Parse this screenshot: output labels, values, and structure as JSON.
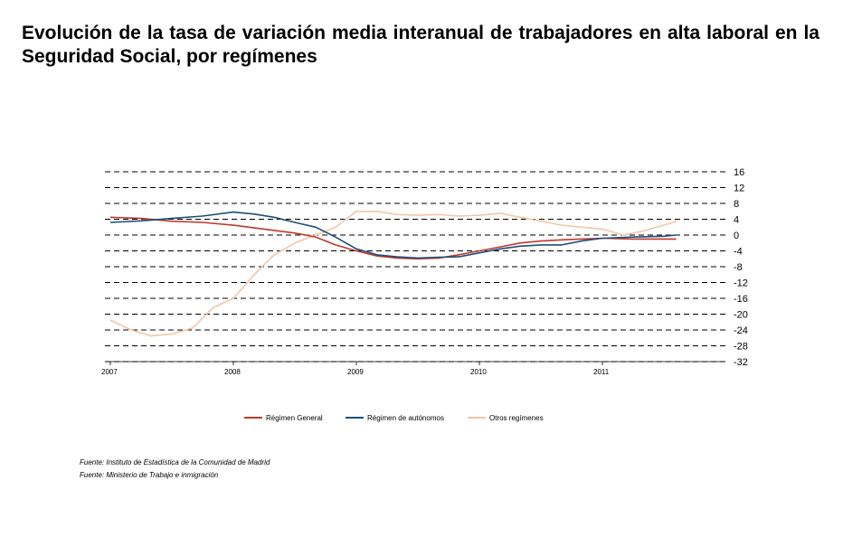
{
  "title": "Evolución de la tasa de variación media interanual de trabajadores en alta laboral en la Seguridad Social, por  regímenes",
  "sources": [
    "Fuente: Instituto de Estadística de la Comunidad de Madrid",
    "Fuente: Ministerio de Trabajo e inmigración"
  ],
  "chart_data": {
    "type": "line",
    "title": "Evolución de la tasa de variación media interanual de trabajadores en alta laboral en la Seguridad Social, por  regímenes",
    "xlabel": "",
    "ylabel": "",
    "xlim": [
      2007.0,
      2012.0
    ],
    "ylim": [
      -32,
      16
    ],
    "yticks": [
      16,
      12,
      8,
      4,
      0,
      -4,
      -8,
      -12,
      -16,
      -20,
      -24,
      -28,
      -32
    ],
    "xtick_labels": [
      "2007",
      "2008",
      "2009",
      "2010",
      "2011"
    ],
    "grid": "horizontal dashed",
    "legend_position": "bottom",
    "colors": {
      "Régimen General": "#c0392b",
      "Régimen de autónomos": "#1f4e79",
      "Otros regímenes": "#f2c6a8"
    },
    "series": [
      {
        "name": "Régimen General",
        "x": [
          2007.0,
          2007.25,
          2007.5,
          2007.75,
          2008.0,
          2008.25,
          2008.5,
          2008.67,
          2008.83,
          2009.0,
          2009.17,
          2009.33,
          2009.5,
          2009.67,
          2009.83,
          2010.0,
          2010.17,
          2010.33,
          2010.5,
          2010.67,
          2010.83,
          2011.0,
          2011.25,
          2011.5,
          2011.6
        ],
        "values": [
          4.5,
          4.2,
          3.5,
          3.2,
          2.5,
          1.5,
          0.5,
          -0.5,
          -2.5,
          -4.0,
          -5.3,
          -5.8,
          -6.0,
          -5.8,
          -5.0,
          -4.0,
          -3.0,
          -2.0,
          -1.5,
          -1.2,
          -1.0,
          -0.8,
          -1.0,
          -1.0,
          -1.0
        ]
      },
      {
        "name": "Régimen de autónomos",
        "x": [
          2007.0,
          2007.25,
          2007.5,
          2007.75,
          2008.0,
          2008.17,
          2008.33,
          2008.5,
          2008.67,
          2008.83,
          2009.0,
          2009.17,
          2009.33,
          2009.5,
          2009.67,
          2009.83,
          2010.0,
          2010.17,
          2010.33,
          2010.5,
          2010.67,
          2010.83,
          2011.0,
          2011.25,
          2011.5,
          2011.6
        ],
        "values": [
          3.2,
          3.6,
          4.2,
          4.8,
          5.8,
          5.3,
          4.5,
          3.2,
          2.0,
          -0.5,
          -3.5,
          -5.0,
          -5.5,
          -5.8,
          -5.6,
          -5.5,
          -4.5,
          -3.5,
          -2.8,
          -2.5,
          -2.5,
          -1.5,
          -0.8,
          -0.5,
          -0.3,
          0.0
        ]
      },
      {
        "name": "Otros regímenes",
        "x": [
          2007.0,
          2007.17,
          2007.33,
          2007.5,
          2007.67,
          2007.83,
          2008.0,
          2008.17,
          2008.33,
          2008.5,
          2008.67,
          2008.83,
          2009.0,
          2009.17,
          2009.33,
          2009.5,
          2009.67,
          2009.83,
          2010.0,
          2010.17,
          2010.33,
          2010.5,
          2010.67,
          2010.83,
          2011.0,
          2011.17,
          2011.33,
          2011.5,
          2011.6
        ],
        "values": [
          -21.5,
          -24.0,
          -25.5,
          -25.0,
          -23.5,
          -18.5,
          -16.0,
          -10.0,
          -5.0,
          -2.0,
          0.0,
          2.0,
          6.0,
          6.0,
          5.2,
          5.0,
          5.2,
          4.8,
          5.0,
          5.5,
          4.5,
          3.5,
          2.5,
          2.0,
          1.5,
          0.0,
          1.0,
          2.5,
          3.5
        ]
      }
    ]
  }
}
